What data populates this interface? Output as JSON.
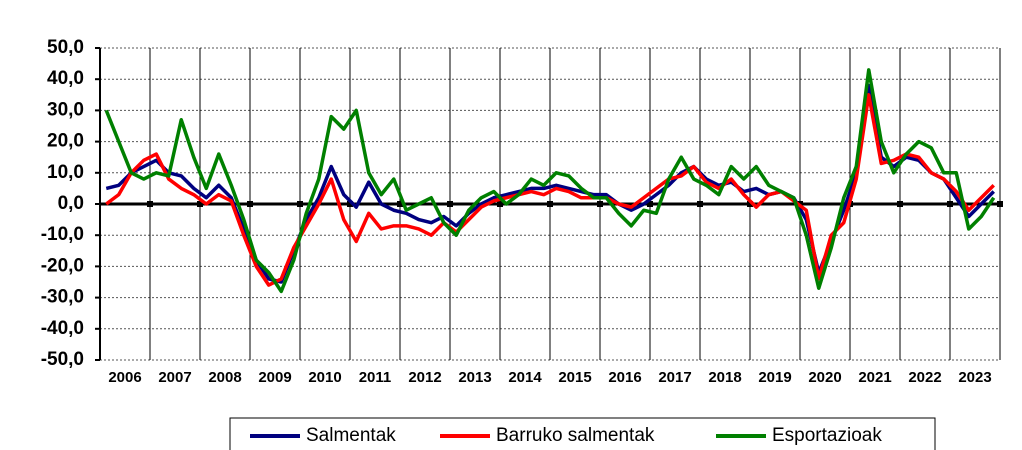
{
  "chart_data": {
    "type": "line",
    "x": [
      2006.125,
      2006.375,
      2006.625,
      2006.875,
      2007.125,
      2007.375,
      2007.625,
      2007.875,
      2008.125,
      2008.375,
      2008.625,
      2008.875,
      2009.125,
      2009.375,
      2009.625,
      2009.875,
      2010.125,
      2010.375,
      2010.625,
      2010.875,
      2011.125,
      2011.375,
      2011.625,
      2011.875,
      2012.125,
      2012.375,
      2012.625,
      2012.875,
      2013.125,
      2013.375,
      2013.625,
      2013.875,
      2014.125,
      2014.375,
      2014.625,
      2014.875,
      2015.125,
      2015.375,
      2015.625,
      2015.875,
      2016.125,
      2016.375,
      2016.625,
      2016.875,
      2017.125,
      2017.375,
      2017.625,
      2017.875,
      2018.125,
      2018.375,
      2018.625,
      2018.875,
      2019.125,
      2019.375,
      2019.625,
      2019.875,
      2020.125,
      2020.375,
      2020.625,
      2020.875,
      2021.125,
      2021.375,
      2021.625,
      2021.875,
      2022.125,
      2022.375,
      2022.625,
      2022.875,
      2023.125,
      2023.375,
      2023.625,
      2023.875
    ],
    "series": [
      {
        "name": "Salmentak",
        "color": "#00007f",
        "values": [
          5,
          6,
          10,
          12,
          14,
          10,
          9,
          5,
          2,
          6,
          2,
          -8,
          -18,
          -24,
          -25,
          -15,
          -5,
          2,
          12,
          3,
          -1,
          7,
          0,
          -2,
          -3,
          -5,
          -6,
          -4,
          -7,
          -3,
          0,
          2,
          3,
          4,
          5,
          5,
          6,
          5,
          4,
          3,
          3,
          0,
          -2,
          0,
          3,
          6,
          10,
          12,
          8,
          6,
          7,
          4,
          5,
          3,
          4,
          2,
          -5,
          -22,
          -12,
          -2,
          10,
          38,
          15,
          12,
          15,
          14,
          10,
          8,
          2,
          -4,
          0,
          4
        ]
      },
      {
        "name": "Barruko salmentak",
        "color": "#ff0000",
        "values": [
          0,
          3,
          10,
          14,
          16,
          8,
          5,
          3,
          0,
          3,
          1,
          -10,
          -20,
          -26,
          -24,
          -14,
          -7,
          0,
          8,
          -5,
          -12,
          -3,
          -8,
          -7,
          -7,
          -8,
          -10,
          -6,
          -9,
          -5,
          -1,
          1,
          2,
          3,
          4,
          3,
          5,
          4,
          2,
          2,
          2,
          0,
          -1,
          2,
          5,
          8,
          9,
          12,
          7,
          5,
          8,
          3,
          -1,
          3,
          4,
          1,
          -2,
          -24,
          -10,
          -6,
          8,
          35,
          13,
          14,
          16,
          15,
          10,
          8,
          4,
          -2,
          2,
          6
        ]
      },
      {
        "name": "Esportazioak",
        "color": "#008000",
        "values": [
          30,
          20,
          10,
          8,
          10,
          9,
          27,
          15,
          5,
          16,
          6,
          -5,
          -18,
          -22,
          -28,
          -18,
          -3,
          8,
          28,
          24,
          30,
          10,
          3,
          8,
          -2,
          0,
          2,
          -6,
          -10,
          -2,
          2,
          4,
          0,
          3,
          8,
          6,
          10,
          9,
          5,
          2,
          2,
          -3,
          -7,
          -2,
          -3,
          8,
          15,
          8,
          6,
          3,
          12,
          8,
          12,
          6,
          4,
          2,
          -10,
          -27,
          -14,
          2,
          12,
          43,
          20,
          10,
          16,
          20,
          18,
          10,
          10,
          -8,
          -4,
          2
        ]
      }
    ],
    "xlim": [
      2006,
      2024
    ],
    "xticks": [
      {
        "value": 2006.5,
        "label": "2006"
      },
      {
        "value": 2007.5,
        "label": "2007"
      },
      {
        "value": 2008.5,
        "label": "2008"
      },
      {
        "value": 2009.5,
        "label": "2009"
      },
      {
        "value": 2010.5,
        "label": "2010"
      },
      {
        "value": 2011.5,
        "label": "2011"
      },
      {
        "value": 2012.5,
        "label": "2012"
      },
      {
        "value": 2013.5,
        "label": "2013"
      },
      {
        "value": 2014.5,
        "label": "2014"
      },
      {
        "value": 2015.5,
        "label": "2015"
      },
      {
        "value": 2016.5,
        "label": "2016"
      },
      {
        "value": 2017.5,
        "label": "2017"
      },
      {
        "value": 2018.5,
        "label": "2018"
      },
      {
        "value": 2019.5,
        "label": "2019"
      },
      {
        "value": 2020.5,
        "label": "2020"
      },
      {
        "value": 2021.5,
        "label": "2021"
      },
      {
        "value": 2022.5,
        "label": "2022"
      },
      {
        "value": 2023.5,
        "label": "2023"
      }
    ],
    "ylim": [
      -50,
      50
    ],
    "yticks": [
      {
        "value": -50,
        "label": "-50,0"
      },
      {
        "value": -40,
        "label": "-40,0"
      },
      {
        "value": -30,
        "label": "-30,0"
      },
      {
        "value": -20,
        "label": "-20,0"
      },
      {
        "value": -10,
        "label": "-10,0"
      },
      {
        "value": 0,
        "label": "0,0"
      },
      {
        "value": 10,
        "label": "10,0"
      },
      {
        "value": 20,
        "label": "20,0"
      },
      {
        "value": 30,
        "label": "30,0"
      },
      {
        "value": 40,
        "label": "40,0"
      },
      {
        "value": 50,
        "label": "50,0"
      }
    ],
    "grid": true,
    "legend": "bottom"
  }
}
